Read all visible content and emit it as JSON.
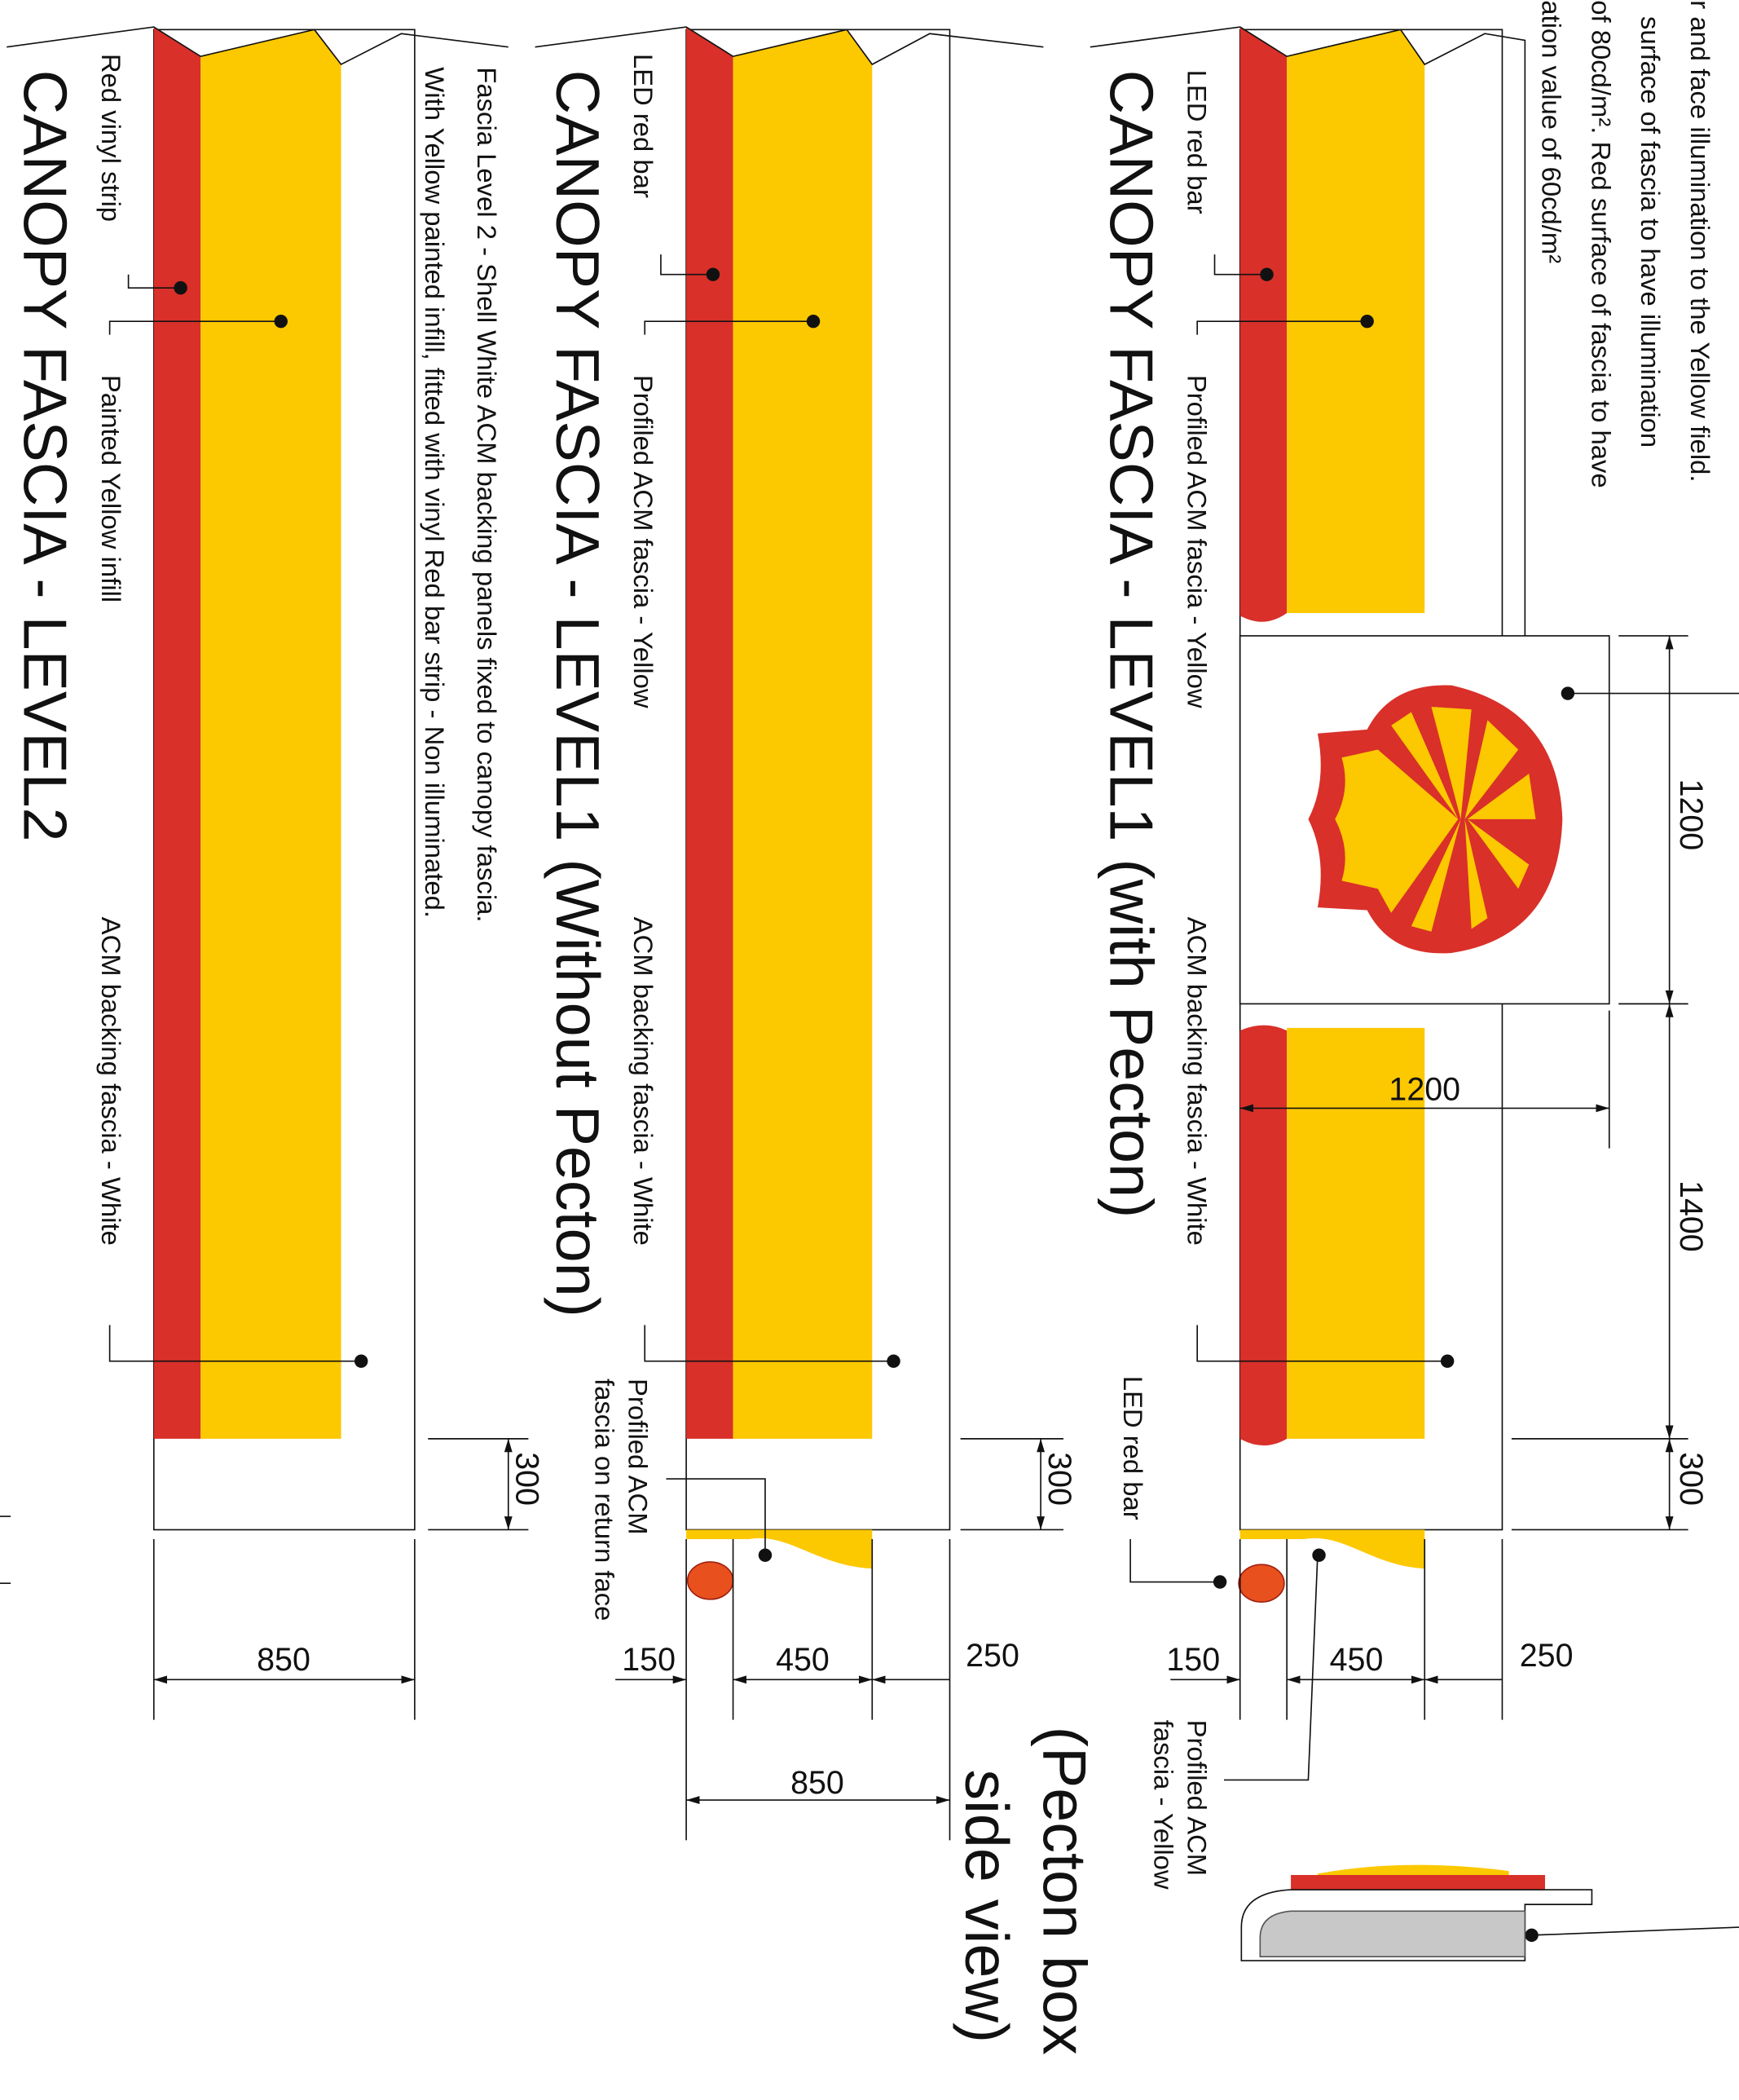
{
  "notes": [
    "r and face illumination to the Yellow field.",
    "surface of fascia to have illumination",
    "of 80cd/m². Red surface of fascia to have",
    "ation value of 60cd/m²"
  ],
  "pecton_panel": {
    "title": "CANOPY FASCIA - LEVEL1 (with Pecton)",
    "labels": [
      "LED red bar",
      "Profiled ACM fascia - Yellow",
      "ACM backing fascia - White",
      "LED red bar",
      "Profiled ACM",
      "fascia - Yellow"
    ],
    "dims": [
      "1200",
      "1200",
      "1400",
      "300",
      "150",
      "450",
      "250"
    ],
    "side_view": [
      "(Pecton box",
      "side view)"
    ]
  },
  "level1_panel": {
    "title": "CANOPY FASCIA - LEVEL1 (Without Pecton)",
    "labels": [
      "LED red bar",
      "Profiled ACM fascia - Yellow",
      "ACM backing fascia - White",
      "Profiled ACM",
      "fascia on return face"
    ],
    "dims": [
      "300",
      "150",
      "450",
      "250",
      "850"
    ]
  },
  "level2_panel": {
    "title": "CANOPY FASCIA - LEVEL2",
    "labels": [
      "Red vinyl strip",
      "Painted Yellow infill",
      "ACM backing fascia - White"
    ],
    "notes": [
      "Fascia Level 2 - Shell White ACM backing panels fixed to canopy fascia.",
      "With Yellow painted infill, fitted with vinyl Red bar strip - Non illuminated."
    ],
    "dims": [
      "300",
      "850"
    ]
  }
}
